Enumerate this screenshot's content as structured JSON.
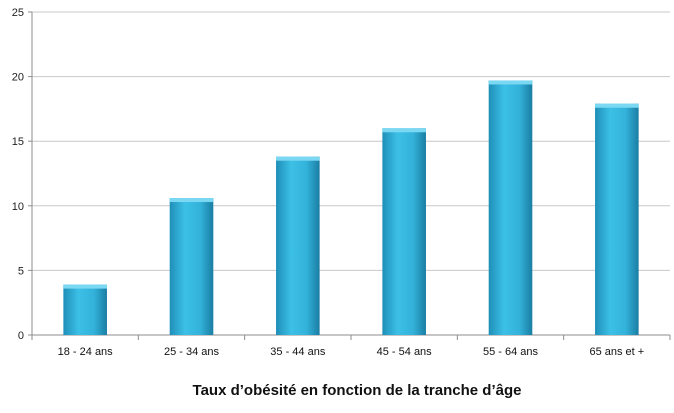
{
  "chart_data": {
    "type": "bar",
    "title": "Taux d’obésité en fonction de la tranche d’âge",
    "xlabel": "",
    "ylabel": "",
    "categories": [
      "18 - 24 ans",
      "25 - 34 ans",
      "35 - 44 ans",
      "45 - 54 ans",
      "55 - 64 ans",
      "65 ans et +"
    ],
    "values": [
      3.9,
      10.6,
      13.8,
      16.0,
      19.7,
      17.9
    ],
    "ylim": [
      0,
      25
    ],
    "yticks": [
      0,
      5,
      10,
      15,
      20,
      25
    ],
    "grid": true,
    "legend": "none",
    "colors": {
      "bar": "#2fb0d8",
      "bar_dark": "#1c7fa3",
      "bar_top": "#7ad8f2",
      "grid": "#c8c8c8",
      "axis": "#8c8c8c"
    }
  }
}
